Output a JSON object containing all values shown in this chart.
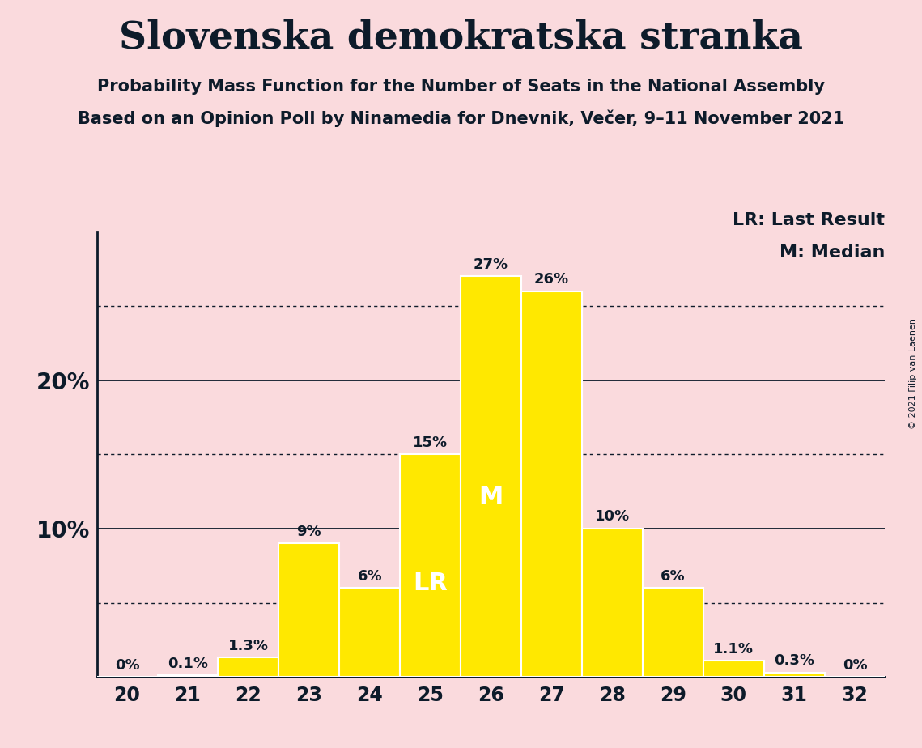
{
  "title": "Slovenska demokratska stranka",
  "subtitle1": "Probability Mass Function for the Number of Seats in the National Assembly",
  "subtitle2": "Based on an Opinion Poll by Ninamedia for Dnevnik, Večer, 9–11 November 2021",
  "copyright": "© 2021 Filip van Laenen",
  "categories": [
    20,
    21,
    22,
    23,
    24,
    25,
    26,
    27,
    28,
    29,
    30,
    31,
    32
  ],
  "values": [
    0.0,
    0.1,
    1.3,
    9.0,
    6.0,
    15.0,
    27.0,
    26.0,
    10.0,
    6.0,
    1.1,
    0.3,
    0.0
  ],
  "labels": [
    "0%",
    "0.1%",
    "1.3%",
    "9%",
    "6%",
    "15%",
    "27%",
    "26%",
    "10%",
    "6%",
    "1.1%",
    "0.3%",
    "0%"
  ],
  "bar_color": "#FFE800",
  "background_color": "#FADADD",
  "text_color": "#0D1B2A",
  "dotted_lines": [
    5,
    15,
    25
  ],
  "solid_lines": [
    10,
    20
  ],
  "lr_bar": 25,
  "median_bar": 26,
  "legend_lr": "LR: Last Result",
  "legend_m": "M: Median",
  "ylim": [
    0,
    30
  ],
  "title_fontsize": 34,
  "subtitle_fontsize": 15,
  "bar_label_fontsize": 13,
  "tick_fontsize": 17,
  "ytick_fontsize": 20,
  "legend_fontsize": 16,
  "lr_m_fontsize": 22
}
